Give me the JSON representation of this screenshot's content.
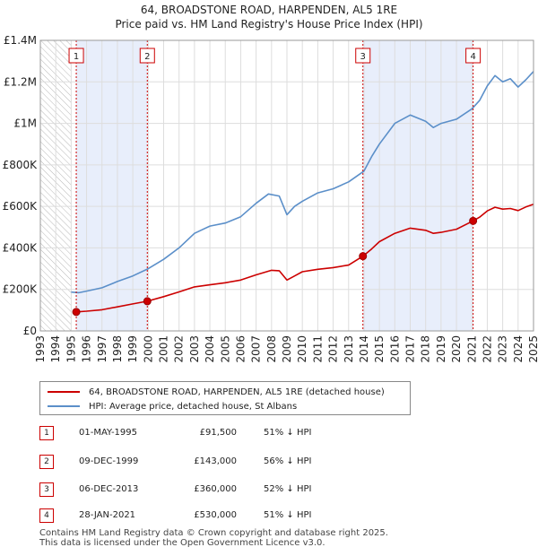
{
  "title_line1": "64, BROADSTONE ROAD, HARPENDEN, AL5 1RE",
  "title_line2": "Price paid vs. HM Land Registry's House Price Index (HPI)",
  "colors": {
    "property": "#cc0000",
    "hpi": "#5b8fc9",
    "shade": "#e8eefb",
    "hatch": "#b8b8b8",
    "grid": "#dddddd"
  },
  "legend": {
    "property_label": "64, BROADSTONE ROAD, HARPENDEN, AL5 1RE (detached house)",
    "hpi_label": "HPI: Average price, detached house, St Albans"
  },
  "transactions": [
    {
      "num": "1",
      "date": "01-MAY-1995",
      "price": "£91,500",
      "hpi": "51% ↓ HPI"
    },
    {
      "num": "2",
      "date": "09-DEC-1999",
      "price": "£143,000",
      "hpi": "56% ↓ HPI"
    },
    {
      "num": "3",
      "date": "06-DEC-2013",
      "price": "£360,000",
      "hpi": "52% ↓ HPI"
    },
    {
      "num": "4",
      "date": "28-JAN-2021",
      "price": "£530,000",
      "hpi": "51% ↓ HPI"
    }
  ],
  "footer_line1": "Contains HM Land Registry data © Crown copyright and database right 2025.",
  "footer_line2": "This data is licensed under the Open Government Licence v3.0.",
  "chart_data": {
    "type": "line",
    "title": "Price paid vs. HM Land Registry's House Price Index (HPI)",
    "xlabel": "",
    "ylabel": "",
    "xlim": [
      1993,
      2025
    ],
    "ylim": [
      0,
      1400000
    ],
    "y_ticks": [
      0,
      200000,
      400000,
      600000,
      800000,
      1000000,
      1200000,
      1400000
    ],
    "y_tick_labels": [
      "£0",
      "£200K",
      "£400K",
      "£600K",
      "£800K",
      "£1M",
      "£1.2M",
      "£1.4M"
    ],
    "x_ticks": [
      1993,
      1994,
      1995,
      1996,
      1997,
      1998,
      1999,
      2000,
      2001,
      2002,
      2003,
      2004,
      2005,
      2006,
      2007,
      2008,
      2009,
      2010,
      2011,
      2012,
      2013,
      2014,
      2015,
      2016,
      2017,
      2018,
      2019,
      2020,
      2021,
      2022,
      2023,
      2024,
      2025
    ],
    "grid": true,
    "hatched_until": 1995,
    "shaded_ranges": [
      [
        1995.33,
        1999.94
      ],
      [
        2013.93,
        2021.08
      ]
    ],
    "series": [
      {
        "name": "64, BROADSTONE ROAD, HARPENDEN, AL5 1RE (detached house)",
        "x": [
          1995.33,
          1996,
          1997,
          1998,
          1999,
          1999.94,
          2001,
          2002,
          2003,
          2004,
          2005,
          2006,
          2007,
          2008,
          2008.5,
          2009,
          2009.5,
          2010,
          2011,
          2012,
          2013,
          2013.93,
          2014.5,
          2015,
          2016,
          2017,
          2018,
          2018.5,
          2019,
          2020,
          2021.08,
          2021.5,
          2022,
          2022.5,
          2023,
          2023.5,
          2024,
          2024.5,
          2025
        ],
        "values": [
          91500,
          95000,
          102000,
          116000,
          130000,
          143000,
          165000,
          188000,
          212000,
          222000,
          232000,
          245000,
          270000,
          292000,
          290000,
          245000,
          265000,
          285000,
          297000,
          305000,
          317000,
          360000,
          395000,
          430000,
          470000,
          495000,
          485000,
          470000,
          475000,
          490000,
          530000,
          548000,
          578000,
          596000,
          587000,
          590000,
          580000,
          597000,
          610000
        ]
      },
      {
        "name": "HPI: Average price, detached house, St Albans",
        "x": [
          1995,
          1995.5,
          1996,
          1997,
          1998,
          1999,
          2000,
          2001,
          2002,
          2003,
          2004,
          2005,
          2006,
          2007,
          2007.8,
          2008.5,
          2009,
          2009.5,
          2010,
          2011,
          2012,
          2013,
          2014,
          2014.5,
          2015,
          2016,
          2017,
          2018,
          2018.5,
          2019,
          2020,
          2021,
          2021.5,
          2022,
          2022.5,
          2023,
          2023.5,
          2024,
          2024.5,
          2025
        ],
        "values": [
          187000,
          184000,
          192000,
          208000,
          238000,
          265000,
          300000,
          345000,
          400000,
          470000,
          505000,
          520000,
          550000,
          615000,
          660000,
          650000,
          560000,
          600000,
          625000,
          665000,
          685000,
          718000,
          770000,
          840000,
          900000,
          1000000,
          1040000,
          1010000,
          980000,
          1000000,
          1020000,
          1070000,
          1110000,
          1180000,
          1230000,
          1200000,
          1215000,
          1175000,
          1210000,
          1250000
        ]
      }
    ],
    "markers": [
      {
        "label": "1",
        "x": 1995.33,
        "y": 91500
      },
      {
        "label": "2",
        "x": 1999.94,
        "y": 143000
      },
      {
        "label": "3",
        "x": 2013.93,
        "y": 360000
      },
      {
        "label": "4",
        "x": 2021.08,
        "y": 530000
      }
    ]
  }
}
